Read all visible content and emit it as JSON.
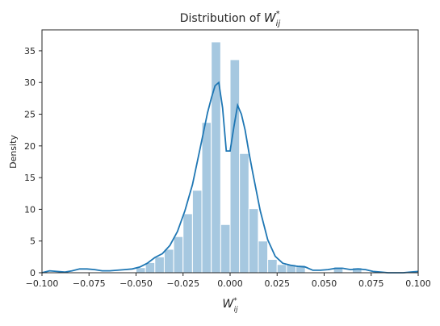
{
  "chart_data": {
    "type": "bar",
    "title": "Distribution of W*ij",
    "title_parts": {
      "prefix": "Distribution of ",
      "symbol": "W",
      "sup": "*",
      "sub": "ij"
    },
    "xlabel": "W*ij",
    "xlabel_parts": {
      "symbol": "W",
      "sup": "*",
      "sub": "ij"
    },
    "ylabel": "Density",
    "xlim": [
      -0.1,
      0.1
    ],
    "ylim": [
      0,
      38.3
    ],
    "xticks": [
      -0.1,
      -0.075,
      -0.05,
      -0.025,
      0.0,
      0.025,
      0.05,
      0.075,
      0.1
    ],
    "xtick_labels": [
      "−0.100",
      "−0.075",
      "−0.050",
      "−0.025",
      "0.000",
      "0.025",
      "0.050",
      "0.075",
      "0.100"
    ],
    "yticks": [
      0,
      5,
      10,
      15,
      20,
      25,
      30,
      35
    ],
    "ytick_labels": [
      "0",
      "5",
      "10",
      "15",
      "20",
      "25",
      "30",
      "35"
    ],
    "grid": false,
    "colors": {
      "bars": "#a6c8e0",
      "kde": "#1f77b4",
      "axes": "#262626"
    },
    "bin_width": 0.005,
    "histogram": [
      {
        "x0": -0.05,
        "x1": -0.045,
        "value": 0.8
      },
      {
        "x0": -0.045,
        "x1": -0.04,
        "value": 1.6
      },
      {
        "x0": -0.04,
        "x1": -0.035,
        "value": 2.5
      },
      {
        "x0": -0.035,
        "x1": -0.03,
        "value": 3.7
      },
      {
        "x0": -0.03,
        "x1": -0.025,
        "value": 5.7
      },
      {
        "x0": -0.025,
        "x1": -0.02,
        "value": 9.3
      },
      {
        "x0": -0.02,
        "x1": -0.015,
        "value": 13.0
      },
      {
        "x0": -0.015,
        "x1": -0.01,
        "value": 23.7
      },
      {
        "x0": -0.01,
        "x1": -0.005,
        "value": 36.4
      },
      {
        "x0": -0.005,
        "x1": 0.0,
        "value": 7.6
      },
      {
        "x0": 0.0,
        "x1": 0.005,
        "value": 33.6
      },
      {
        "x0": 0.005,
        "x1": 0.01,
        "value": 18.8
      },
      {
        "x0": 0.01,
        "x1": 0.015,
        "value": 10.1
      },
      {
        "x0": 0.015,
        "x1": 0.02,
        "value": 5.0
      },
      {
        "x0": 0.02,
        "x1": 0.025,
        "value": 2.1
      },
      {
        "x0": 0.025,
        "x1": 0.03,
        "value": 1.3
      },
      {
        "x0": 0.03,
        "x1": 0.035,
        "value": 1.3
      },
      {
        "x0": 0.035,
        "x1": 0.04,
        "value": 1.2
      },
      {
        "x0": 0.055,
        "x1": 0.06,
        "value": 0.9
      },
      {
        "x0": 0.065,
        "x1": 0.07,
        "value": 0.8
      }
    ],
    "kde": {
      "x": [
        -0.1,
        -0.096,
        -0.092,
        -0.088,
        -0.084,
        -0.08,
        -0.076,
        -0.072,
        -0.068,
        -0.064,
        -0.06,
        -0.056,
        -0.052,
        -0.048,
        -0.044,
        -0.04,
        -0.036,
        -0.032,
        -0.028,
        -0.024,
        -0.02,
        -0.016,
        -0.012,
        -0.01,
        -0.008,
        -0.006,
        -0.004,
        -0.002,
        0.0,
        0.002,
        0.004,
        0.006,
        0.008,
        0.01,
        0.012,
        0.016,
        0.02,
        0.024,
        0.028,
        0.032,
        0.036,
        0.04,
        0.044,
        0.048,
        0.052,
        0.056,
        0.06,
        0.064,
        0.068,
        0.072,
        0.076,
        0.08,
        0.084,
        0.088,
        0.092,
        0.096,
        0.1
      ],
      "y": [
        0.0,
        0.3,
        0.2,
        0.1,
        0.3,
        0.6,
        0.6,
        0.5,
        0.3,
        0.3,
        0.4,
        0.5,
        0.6,
        0.9,
        1.5,
        2.4,
        3.0,
        4.3,
        6.5,
        9.8,
        13.9,
        19.5,
        25.2,
        27.5,
        29.5,
        30.0,
        26.0,
        19.2,
        19.2,
        23.0,
        26.4,
        25.0,
        22.5,
        19.0,
        15.8,
        9.8,
        5.2,
        2.6,
        1.5,
        1.2,
        1.0,
        0.9,
        0.4,
        0.4,
        0.5,
        0.7,
        0.7,
        0.5,
        0.6,
        0.5,
        0.2,
        0.1,
        0.0,
        0.0,
        0.0,
        0.1,
        0.2
      ]
    }
  }
}
